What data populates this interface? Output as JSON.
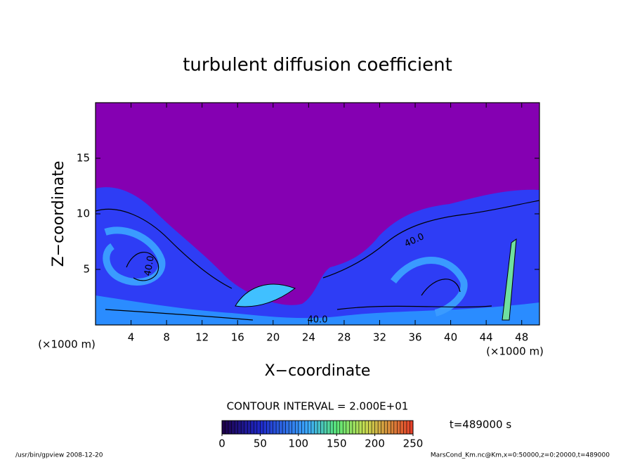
{
  "chart_data": {
    "type": "contour",
    "title": "turbulent diffusion coefficient",
    "x_label": "X−coordinate",
    "y_label": "Z−coordinate",
    "x_unit": "(×1000 m)",
    "y_unit": "(×1000 m)",
    "xlim": [
      0,
      50
    ],
    "xticks": [
      4,
      8,
      12,
      16,
      20,
      24,
      28,
      32,
      36,
      40,
      44,
      48
    ],
    "ylim": [
      0,
      20
    ],
    "yticks": [
      5,
      10,
      15
    ],
    "contour_labels": [
      "40.0",
      "40.0",
      "40.0"
    ],
    "contour_interval": "CONTOUR INTERVAL = 2.000E+01",
    "colorbar": {
      "clim": [
        0,
        250
      ],
      "ticks": [
        0,
        50,
        100,
        150,
        200,
        250
      ]
    },
    "time_label": "t=489000 s",
    "footer_left": "/usr/bin/gpview   2008-12-20",
    "footer_right": "MarsCond_Km.nc@Km,x=0:50000,z=0:20000,t=489000"
  }
}
